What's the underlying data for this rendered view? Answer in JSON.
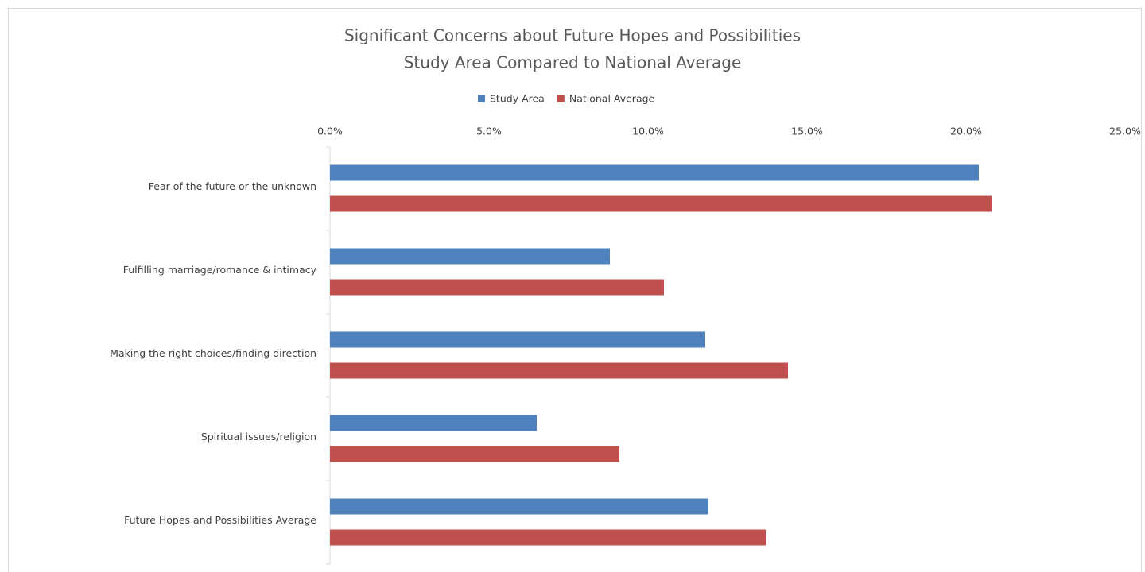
{
  "chart_data": {
    "type": "hbar",
    "title": "Significant Concerns about Future Hopes and Possibilities",
    "subtitle": "Study Area Compared to National Average",
    "categories": [
      "Fear of the future or the unknown",
      "Fulfilling marriage/romance & intimacy",
      "Making the right choices/finding direction",
      "Spiritual issues/religion",
      "Future Hopes and Possibilities Average"
    ],
    "series": [
      {
        "name": "Study Area",
        "color": "#4f81bd",
        "values": [
          20.4,
          8.8,
          11.8,
          6.5,
          11.9
        ]
      },
      {
        "name": "National Average",
        "color": "#c0504d",
        "values": [
          20.8,
          10.5,
          14.4,
          9.1,
          13.7
        ]
      }
    ],
    "xlim": [
      0,
      25
    ],
    "xticks": [
      {
        "value": 0,
        "label": "0.0%"
      },
      {
        "value": 5,
        "label": "5.0%"
      },
      {
        "value": 10,
        "label": "10.0%"
      },
      {
        "value": 15,
        "label": "15.0%"
      },
      {
        "value": 20,
        "label": "20.0%"
      },
      {
        "value": 25,
        "label": "25.0%"
      }
    ],
    "legend": "top"
  }
}
